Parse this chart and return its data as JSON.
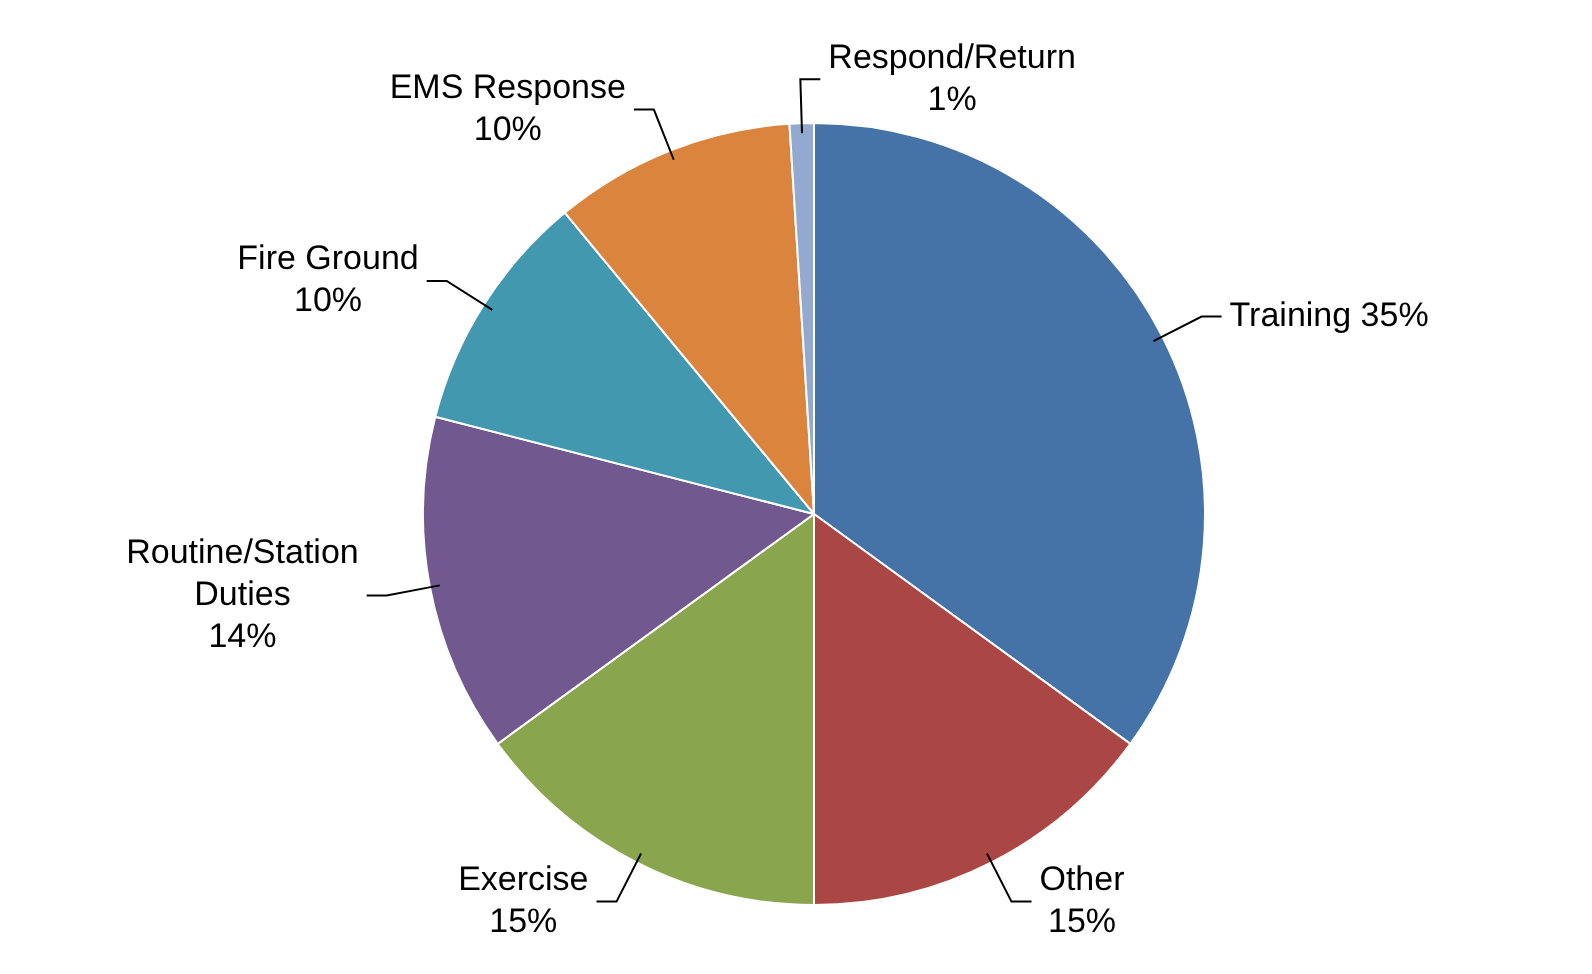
{
  "chart_data": {
    "type": "pie",
    "categories": [
      "Training",
      "Other",
      "Exercise",
      "Routine/Station Duties",
      "Fire Ground",
      "EMS Response",
      "Respond/Return"
    ],
    "values": [
      35,
      15,
      15,
      14,
      10,
      10,
      1
    ],
    "colors": [
      "#4572a7",
      "#aa4643",
      "#89a54e",
      "#71588f",
      "#4198af",
      "#db843d",
      "#93a9cf"
    ],
    "value_labels": [
      "35%",
      "15%",
      "15%",
      "14%",
      "10%",
      "10%",
      "1%"
    ],
    "legend": false
  }
}
